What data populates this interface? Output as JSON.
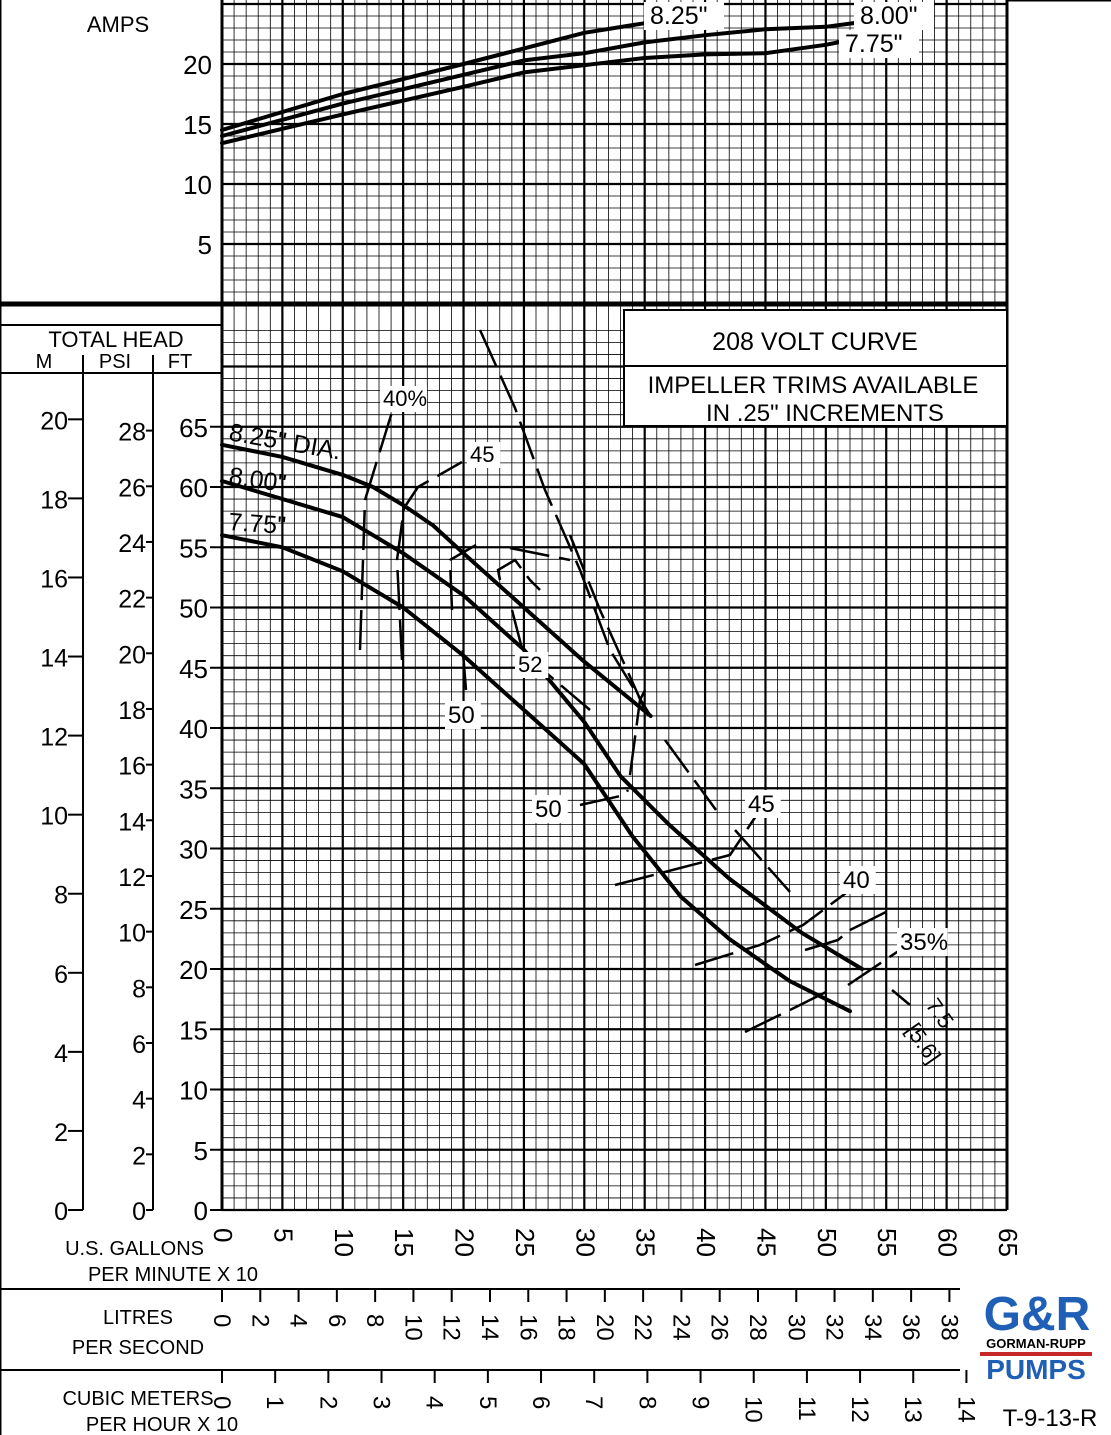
{
  "chart_data": [
    {
      "type": "line",
      "ylabel": "AMPS",
      "yticks": [
        5,
        10,
        15,
        20
      ],
      "ylim": [
        0,
        25
      ],
      "xlim": [
        0,
        65
      ],
      "grid": true,
      "series": [
        {
          "name": "8.25\"",
          "x": [
            0,
            10,
            20,
            25,
            30,
            35
          ],
          "y": [
            14.5,
            17.5,
            20.0,
            21.3,
            22.6,
            23.4
          ]
        },
        {
          "name": "8.00\"",
          "x": [
            0,
            10,
            20,
            25,
            30,
            35,
            40,
            45,
            50,
            53
          ],
          "y": [
            14.0,
            16.7,
            19.1,
            20.3,
            20.9,
            21.8,
            22.4,
            22.9,
            23.1,
            23.5
          ]
        },
        {
          "name": "7.75\"",
          "x": [
            0,
            10,
            20,
            25,
            30,
            35,
            40,
            45,
            50,
            52
          ],
          "y": [
            13.4,
            15.8,
            18.1,
            19.3,
            19.9,
            20.5,
            20.8,
            20.9,
            21.6,
            22.0
          ]
        }
      ]
    },
    {
      "type": "line",
      "title": "208 VOLT CURVE",
      "subtitle": [
        "IMPELLER TRIMS AVAILABLE",
        "IN .25\" INCREMENTS"
      ],
      "ylabel": "TOTAL HEAD",
      "ylabel_units": [
        "M",
        "PSI",
        "FT"
      ],
      "xlabel": [
        "U.S. GALLONS",
        "PER MINUTE X 10"
      ],
      "xlim": [
        0,
        65
      ],
      "ylim": [
        0,
        70
      ],
      "xticks": [
        0,
        5,
        10,
        15,
        20,
        25,
        30,
        35,
        40,
        45,
        50,
        55,
        60,
        65
      ],
      "yticks_ft": [
        0,
        5,
        10,
        15,
        20,
        25,
        30,
        35,
        40,
        45,
        50,
        55,
        60,
        65
      ],
      "yticks_psi": [
        0,
        2,
        4,
        6,
        8,
        10,
        12,
        14,
        16,
        18,
        20,
        22,
        24,
        26,
        28
      ],
      "yticks_m": [
        0,
        2,
        4,
        6,
        8,
        10,
        12,
        14,
        16,
        18,
        20
      ],
      "litres_axis": {
        "label": [
          "LITRES",
          "PER SECOND"
        ],
        "ticks": [
          0,
          2,
          4,
          6,
          8,
          10,
          12,
          14,
          16,
          18,
          20,
          22,
          24,
          26,
          28,
          30,
          32,
          34,
          36,
          38
        ]
      },
      "cubic_axis": {
        "label": [
          "CUBIC METERS",
          "PER HOUR X 10"
        ],
        "ticks": [
          0,
          1,
          2,
          3,
          4,
          5,
          6,
          7,
          8,
          9,
          10,
          11,
          12,
          13,
          14
        ]
      },
      "grid": true,
      "series": [
        {
          "name": "8.25\" DIA.",
          "x": [
            0,
            5,
            10,
            12.5,
            15,
            17.5,
            20,
            25,
            30,
            35.5
          ],
          "y": [
            63.5,
            62.5,
            61.0,
            60.0,
            58.5,
            56.8,
            54.5,
            50.0,
            45.5,
            41.0
          ]
        },
        {
          "name": "8.00\"",
          "x": [
            0,
            5,
            10,
            15,
            20,
            25,
            30,
            33,
            37,
            42,
            48,
            53
          ],
          "y": [
            60.5,
            59.0,
            57.5,
            54.5,
            51.0,
            46.5,
            40.5,
            36.0,
            32.0,
            27.5,
            23.0,
            20.0
          ]
        },
        {
          "name": "7.75\"",
          "x": [
            0,
            5,
            10,
            15,
            20,
            25,
            30,
            34,
            38,
            42,
            47,
            52
          ],
          "y": [
            56.0,
            55.0,
            53.0,
            50.0,
            46.0,
            41.5,
            37.0,
            31.0,
            26.0,
            22.5,
            19.0,
            16.5
          ]
        }
      ],
      "efficiency_labels": [
        "40%",
        "45",
        "50",
        "52",
        "50",
        "45",
        "40",
        "35%"
      ],
      "npsh_labels": [
        "7.5",
        "[5.6]"
      ]
    }
  ],
  "brand": {
    "top": "G&R",
    "middle": "GORMAN-RUPP",
    "bottom": "PUMPS",
    "color": "#1f5fb5",
    "accent": "#c62828"
  },
  "drawing_no": "T-9-13-R"
}
